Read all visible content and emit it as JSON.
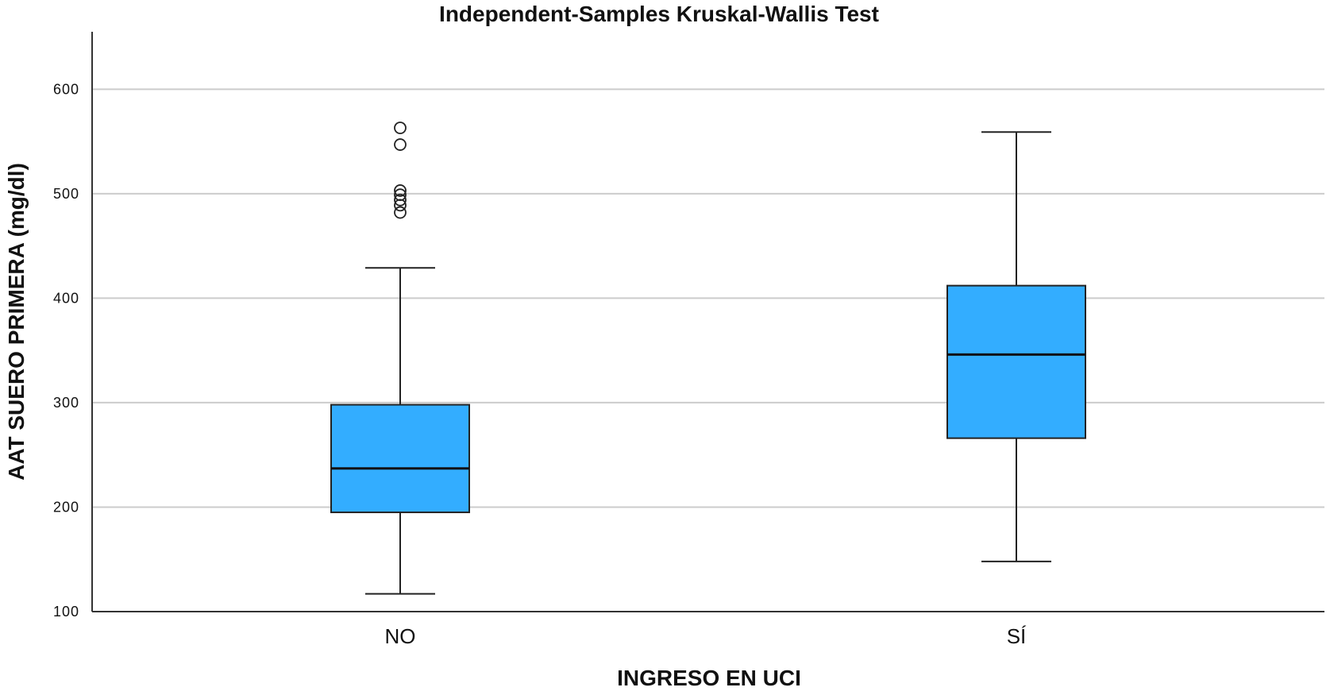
{
  "chart_data": {
    "type": "box",
    "title": "Independent-Samples Kruskal-Wallis Test",
    "xlabel": "INGRESO EN UCI",
    "ylabel": "AAT SUERO PRIMERA (mg/dl)",
    "ylim": [
      100,
      655
    ],
    "yticks": [
      100,
      200,
      300,
      400,
      500,
      600
    ],
    "grid": true,
    "box_color": "#33adff",
    "categories": [
      "NO",
      "SÍ"
    ],
    "boxes": [
      {
        "category": "NO",
        "whisker_low": 117,
        "q1": 195,
        "median": 237,
        "q3": 298,
        "whisker_high": 429,
        "outliers": [
          482,
          489,
          494,
          499,
          503,
          547,
          563
        ]
      },
      {
        "category": "SÍ",
        "whisker_low": 148,
        "q1": 266,
        "median": 346,
        "q3": 412,
        "whisker_high": 559,
        "outliers": []
      }
    ]
  }
}
